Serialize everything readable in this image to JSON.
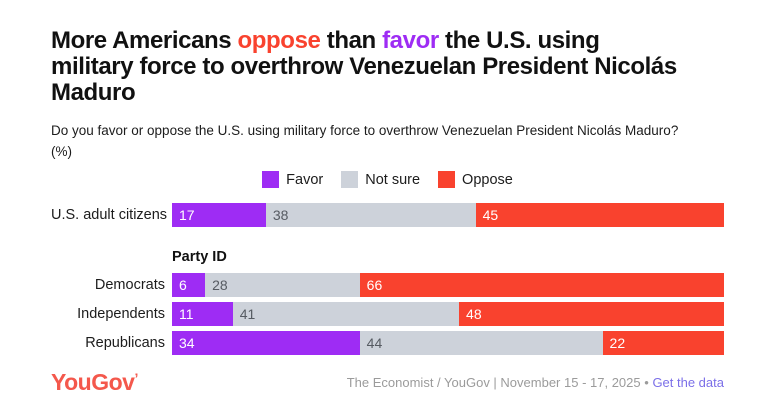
{
  "title": {
    "part1": "More Americans ",
    "highlight_oppose": "oppose",
    "part2": " than ",
    "highlight_favor": "favor",
    "part3": " the U.S. using military force to overthrow Venezuelan President Nicolás Maduro"
  },
  "subtitle": {
    "line1": "Do you favor or oppose the U.S. using military force to overthrow Venezuelan President Nicolás Maduro?",
    "line2": "(%)"
  },
  "legend": [
    {
      "label": "Favor",
      "color": "#9E2CF4"
    },
    {
      "label": "Not sure",
      "color": "#CDD2DA"
    },
    {
      "label": "Oppose",
      "color": "#F9422E"
    }
  ],
  "party_section_label": "Party ID",
  "chart_data": {
    "type": "bar",
    "stacked": true,
    "orientation": "horizontal",
    "unit": "%",
    "xlim": [
      0,
      100
    ],
    "value_labels": "inside-left",
    "series_names": [
      "Favor",
      "Not sure",
      "Oppose"
    ],
    "colors": {
      "Favor": "#9E2CF4",
      "Not sure": "#CDD2DA",
      "Oppose": "#F9422E"
    },
    "value_text_colors": {
      "Favor": "#ffffff",
      "Not sure": "#565B62",
      "Oppose": "#ffffff"
    },
    "groups": [
      {
        "label": "U.S. adult citizens",
        "section": "overall",
        "values": [
          17,
          38,
          45
        ]
      },
      {
        "label": "Democrats",
        "section": "Party ID",
        "values": [
          6,
          28,
          66
        ]
      },
      {
        "label": "Independents",
        "section": "Party ID",
        "values": [
          11,
          41,
          48
        ]
      },
      {
        "label": "Republicans",
        "section": "Party ID",
        "values": [
          34,
          44,
          22
        ]
      }
    ]
  },
  "footer": {
    "logo_text": "YouGov",
    "source_text": "The Economist / YouGov | November 15 - 17, 2025",
    "separator": "•",
    "link_text": "Get the data",
    "logo_color": "#F4584C",
    "link_color": "#7B6FE8"
  }
}
